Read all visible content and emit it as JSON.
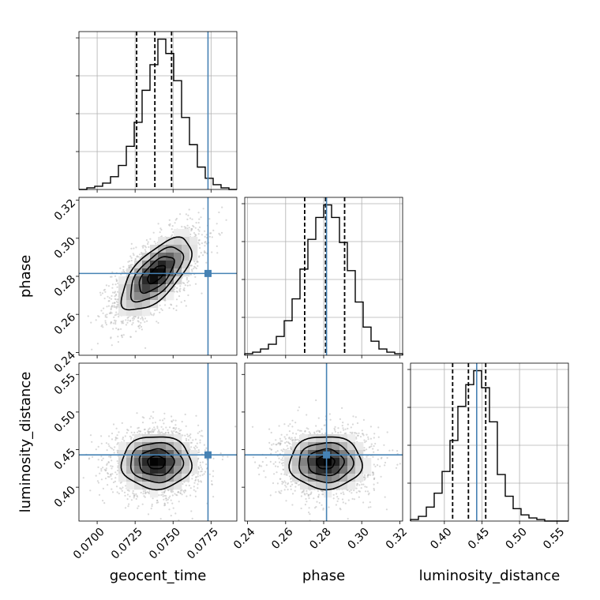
{
  "chart_data": {
    "type": "corner",
    "parameters": [
      "geocent_time",
      "phase",
      "luminosity_distance"
    ],
    "axis_labels": {
      "geocent_time": "geocent_time",
      "phase": "phase",
      "luminosity_distance": "luminosity_distance"
    },
    "ranges": {
      "geocent_time": [
        0.0688,
        0.0792
      ],
      "phase": [
        0.2385,
        0.3215
      ],
      "luminosity_distance": [
        0.355,
        0.565
      ]
    },
    "ticks": {
      "geocent_time": [
        "0.0700",
        "0.0725",
        "0.0750",
        "0.0775"
      ],
      "phase": [
        "0.24",
        "0.26",
        "0.28",
        "0.30",
        "0.32"
      ],
      "luminosity_distance": [
        "0.40",
        "0.45",
        "0.50",
        "0.55"
      ]
    },
    "tick_values": {
      "geocent_time": [
        0.07,
        0.0725,
        0.075,
        0.0775
      ],
      "phase": [
        0.24,
        0.26,
        0.28,
        0.3,
        0.32
      ],
      "luminosity_distance": [
        0.4,
        0.45,
        0.5,
        0.55
      ]
    },
    "truths": {
      "geocent_time": 0.0773,
      "phase": 0.2815,
      "luminosity_distance": 0.443
    },
    "truth_color": "#4682b4",
    "quantiles": {
      "geocent_time": [
        0.0726,
        0.0738,
        0.0749
      ],
      "phase": [
        0.27,
        0.281,
        0.291
      ],
      "luminosity_distance": [
        0.411,
        0.432,
        0.455
      ]
    },
    "histograms": {
      "geocent_time": {
        "edges_start": 0.0688,
        "bin_width": 0.00052,
        "counts": [
          0,
          1,
          2,
          4,
          8,
          15,
          27,
          42,
          62,
          78,
          94,
          85,
          68,
          45,
          28,
          14,
          7,
          3,
          1,
          0
        ]
      },
      "phase": {
        "edges_start": 0.2385,
        "bin_width": 0.00415,
        "counts": [
          1,
          2,
          4,
          7,
          12,
          22,
          36,
          55,
          74,
          88,
          96,
          88,
          72,
          54,
          34,
          18,
          9,
          4,
          2,
          1
        ]
      },
      "luminosity_distance": {
        "edges_start": 0.355,
        "bin_width": 0.0105,
        "counts": [
          1,
          3,
          9,
          18,
          32,
          52,
          74,
          88,
          97,
          86,
          64,
          30,
          16,
          8,
          4,
          2,
          1,
          0,
          0,
          0
        ]
      }
    },
    "densities": [
      {
        "x": "geocent_time",
        "y": "phase",
        "center": [
          0.0739,
          0.281
        ],
        "sd": [
          0.00115,
          0.0095
        ],
        "rho": 0.65
      },
      {
        "x": "geocent_time",
        "y": "luminosity_distance",
        "center": [
          0.0739,
          0.433
        ],
        "sd": [
          0.00115,
          0.0175
        ],
        "rho": 0.0
      },
      {
        "x": "phase",
        "y": "luminosity_distance",
        "center": [
          0.281,
          0.433
        ],
        "sd": [
          0.0095,
          0.0175
        ],
        "rho": 0.0
      }
    ],
    "grid": true
  }
}
